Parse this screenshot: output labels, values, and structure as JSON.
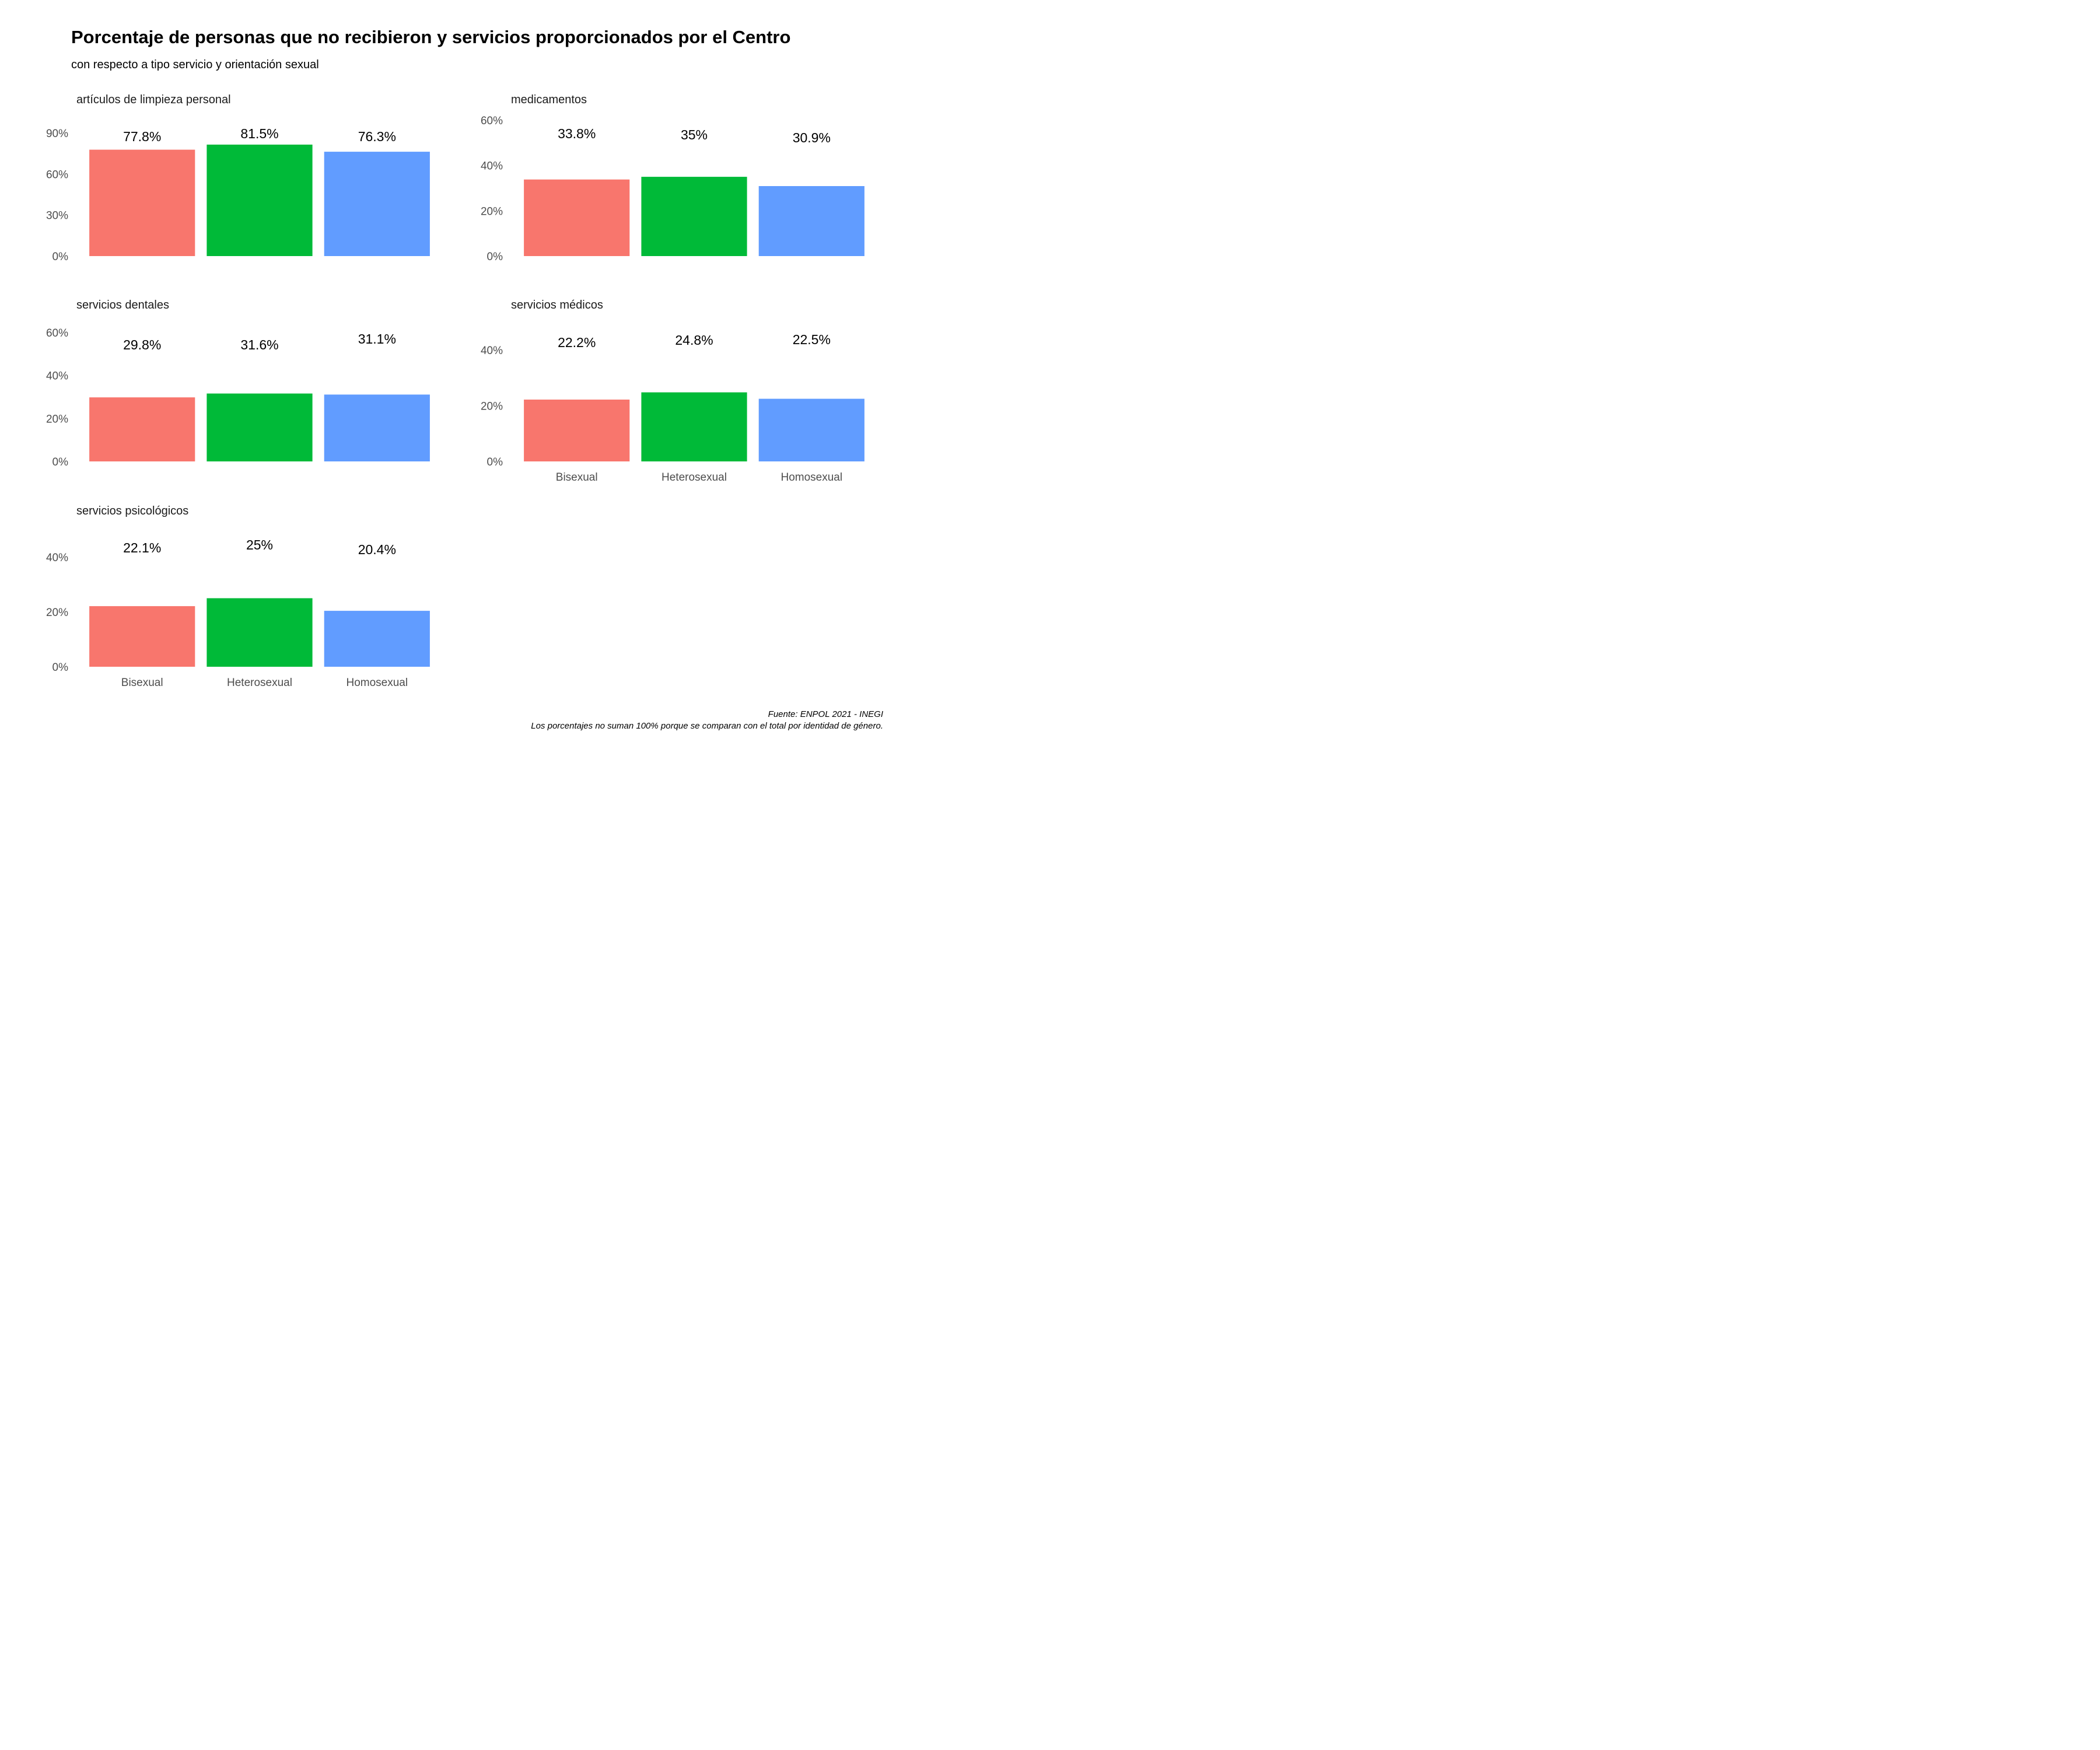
{
  "header": {
    "title": "Porcentaje de personas que no recibieron y servicios proporcionados por el Centro",
    "subtitle": "con respecto a tipo servicio y orientación sexual"
  },
  "footer": {
    "source": "Fuente: ENPOL 2021 - INEGI",
    "note": "Los porcentajes no suman 100% porque se comparan con el total por identidad de género."
  },
  "colors": {
    "Bisexual": "#F8766D",
    "Heterosexual": "#00BA38",
    "Homosexual": "#619CFF"
  },
  "chart_data": [
    {
      "type": "bar",
      "title": "artículos de limpieza personal",
      "categories": [
        "Bisexual",
        "Heterosexual",
        "Homosexual"
      ],
      "values": [
        77.8,
        81.5,
        76.3
      ],
      "value_labels": [
        "77.8%",
        "81.5%",
        "76.3%"
      ],
      "ylim": [
        0,
        90
      ],
      "yticks": [
        0,
        30,
        60,
        90
      ],
      "ytick_labels": [
        "0%",
        "30%",
        "60%",
        "90%"
      ],
      "show_x_labels": false,
      "grid": false,
      "legend": "none"
    },
    {
      "type": "bar",
      "title": "medicamentos",
      "categories": [
        "Bisexual",
        "Heterosexual",
        "Homosexual"
      ],
      "values": [
        33.8,
        35,
        30.9
      ],
      "value_labels": [
        "33.8%",
        "35%",
        "30.9%"
      ],
      "ylim": [
        0,
        60
      ],
      "yticks": [
        0,
        20,
        40,
        60
      ],
      "ytick_labels": [
        "0%",
        "20%",
        "40%",
        "60%"
      ],
      "show_x_labels": false,
      "grid": false,
      "legend": "none"
    },
    {
      "type": "bar",
      "title": "servicios dentales",
      "categories": [
        "Bisexual",
        "Heterosexual",
        "Homosexual"
      ],
      "values": [
        29.8,
        31.6,
        31.1
      ],
      "value_labels": [
        "29.8%",
        "31.6%",
        "31.1%"
      ],
      "ylim": [
        0,
        60
      ],
      "yticks": [
        0,
        20,
        40,
        60
      ],
      "ytick_labels": [
        "0%",
        "20%",
        "40%",
        "60%"
      ],
      "show_x_labels": false,
      "grid": false,
      "legend": "none"
    },
    {
      "type": "bar",
      "title": "servicios médicos",
      "categories": [
        "Bisexual",
        "Heterosexual",
        "Homosexual"
      ],
      "values": [
        22.2,
        24.8,
        22.5
      ],
      "value_labels": [
        "22.2%",
        "24.8%",
        "22.5%"
      ],
      "ylim": [
        0,
        40
      ],
      "yticks": [
        0,
        20,
        40
      ],
      "ytick_labels": [
        "0%",
        "20%",
        "40%"
      ],
      "show_x_labels": true,
      "grid": false,
      "legend": "none"
    },
    {
      "type": "bar",
      "title": "servicios psicológicos",
      "categories": [
        "Bisexual",
        "Heterosexual",
        "Homosexual"
      ],
      "values": [
        22.1,
        25,
        20.4
      ],
      "value_labels": [
        "22.1%",
        "25%",
        "20.4%"
      ],
      "ylim": [
        0,
        40
      ],
      "yticks": [
        0,
        20,
        40
      ],
      "ytick_labels": [
        "0%",
        "20%",
        "40%"
      ],
      "show_x_labels": true,
      "grid": false,
      "legend": "none"
    }
  ]
}
